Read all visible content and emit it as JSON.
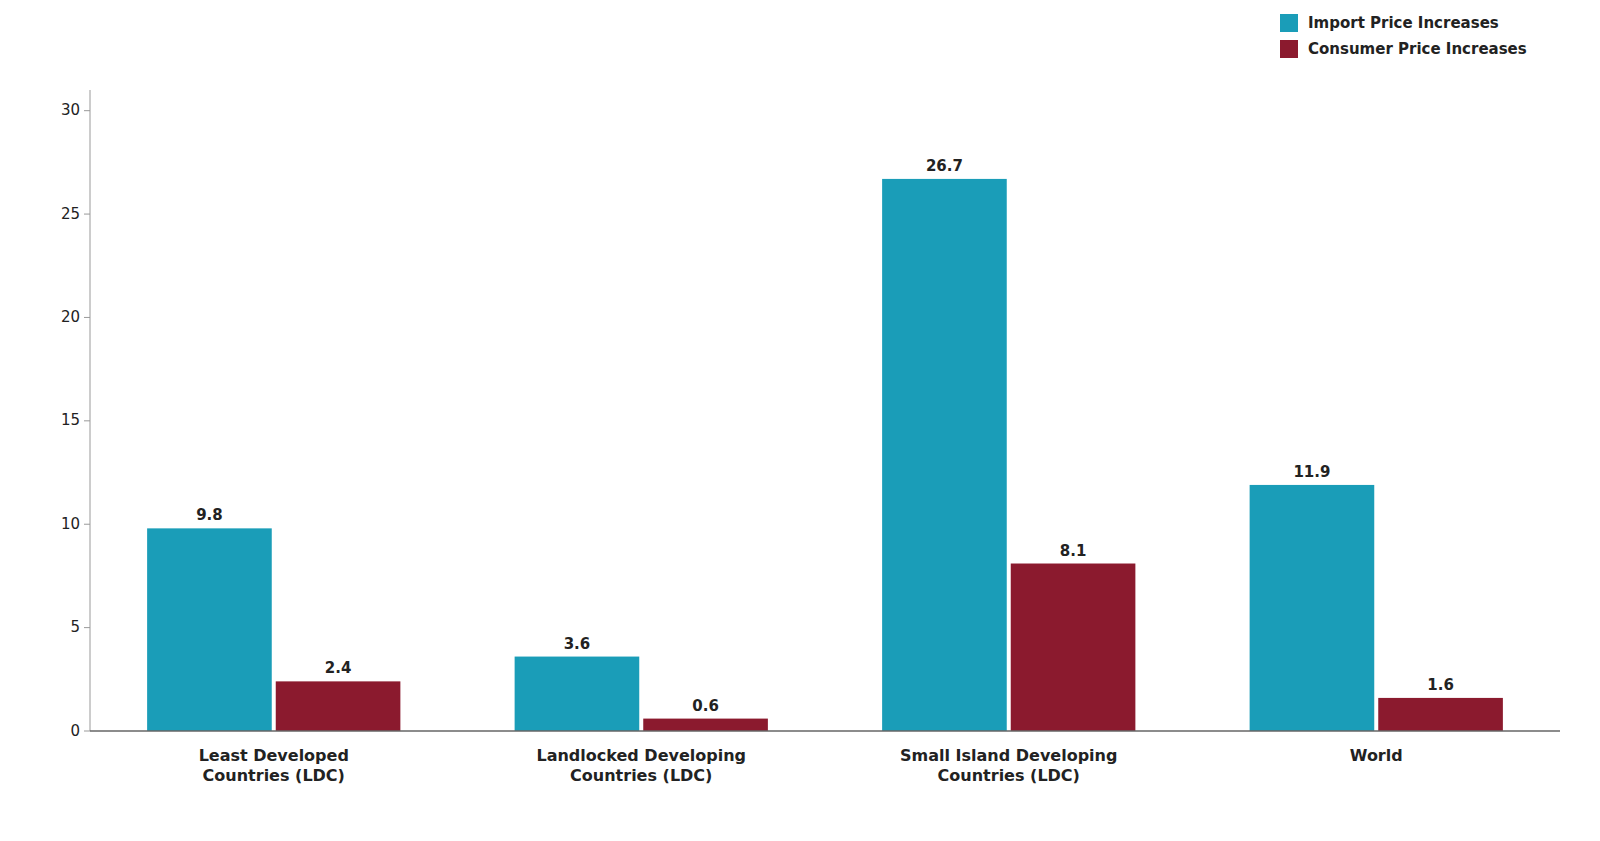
{
  "chart_data": {
    "type": "bar",
    "categories": [
      "Least Developed\nCountries (LDC)",
      "Landlocked Developing\nCountries (LDC)",
      "Small Island Developing\nCountries (LDC)",
      "World"
    ],
    "series": [
      {
        "name": "Import Price Increases",
        "color": "#1a9db8",
        "values": [
          9.8,
          3.6,
          26.7,
          11.9
        ]
      },
      {
        "name": "Consumer Price Increases",
        "color": "#8b1a2e",
        "values": [
          2.4,
          0.6,
          8.1,
          1.6
        ]
      }
    ],
    "ylim": [
      0,
      31
    ],
    "yticks": [
      0,
      5,
      10,
      15,
      20,
      25,
      30
    ],
    "grid": false,
    "legend": "upper right",
    "data_labels": true
  }
}
